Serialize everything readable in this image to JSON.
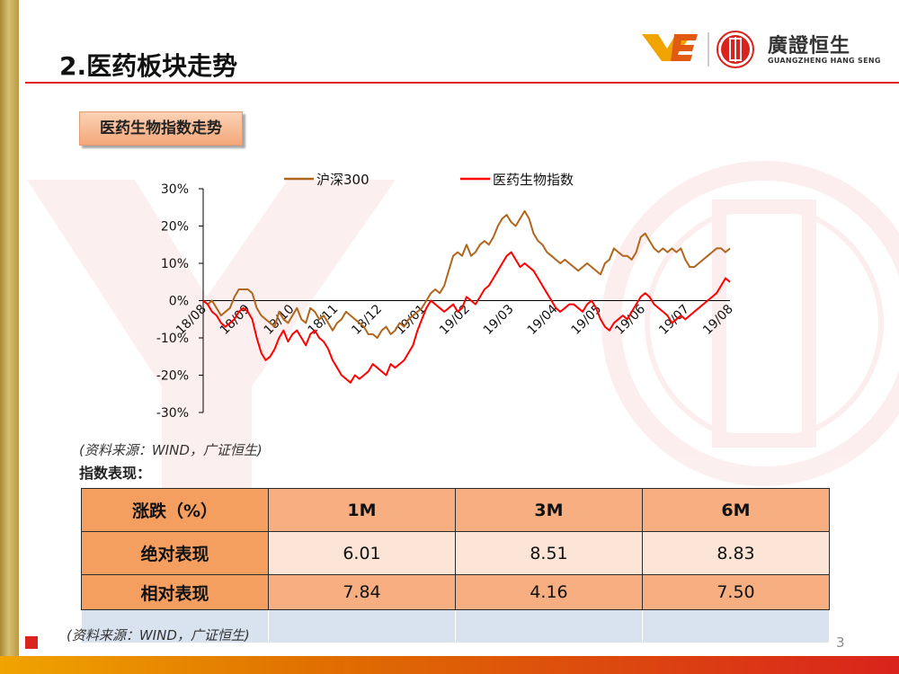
{
  "slide": {
    "title": "2.医药板块走势",
    "section_label": "医药生物指数走势",
    "page_number": "3"
  },
  "logo": {
    "name": "廣證恒生",
    "sub": "GUANGZHENG HANG SENG"
  },
  "colors": {
    "accent": "#d9231c",
    "hs300": "#b0661c",
    "pharma": "#ff0000",
    "table_head": "#f7ae80",
    "table_light": "#fce5d7",
    "table_first_col": "#f49e60"
  },
  "chart_data": {
    "type": "line",
    "title": "",
    "xlabel": "",
    "ylabel": "",
    "ylim": [
      -30,
      30
    ],
    "y_ticks": [
      "30%",
      "20%",
      "10%",
      "0%",
      "-10%",
      "-20%",
      "-30%"
    ],
    "x_ticks": [
      "18/08",
      "18/09",
      "18/10",
      "18/11",
      "18/12",
      "19/01",
      "19/02",
      "19/03",
      "19/04",
      "19/05",
      "19/06",
      "19/07",
      "19/08"
    ],
    "legend_position": "top",
    "grid": false,
    "series": [
      {
        "name": "沪深300",
        "color": "#b0661c",
        "values": [
          0,
          -1,
          0,
          -2,
          -4,
          -3,
          -2,
          1,
          3,
          3,
          3,
          2,
          -2,
          -4,
          -5,
          -6,
          -7,
          -3,
          -5,
          -6,
          -4,
          -2,
          -5,
          -6,
          -2,
          -3,
          -5,
          -4,
          -6,
          -8,
          -6,
          -5,
          -3,
          -4,
          -5,
          -6,
          -7,
          -9,
          -9,
          -10,
          -8,
          -7,
          -9,
          -8,
          -6,
          -7,
          -5,
          -4,
          -3,
          -2,
          0,
          2,
          3,
          2,
          4,
          8,
          12,
          13,
          12,
          15,
          12,
          13,
          15,
          16,
          15,
          17,
          20,
          22,
          23,
          21,
          20,
          22,
          24,
          22,
          18,
          16,
          15,
          13,
          12,
          11,
          10,
          11,
          10,
          9,
          8,
          9,
          10,
          9,
          8,
          7,
          10,
          11,
          14,
          13,
          12,
          12,
          11,
          13,
          17,
          18,
          16,
          14,
          13,
          14,
          13,
          14,
          13,
          14,
          11,
          9,
          9,
          10,
          11,
          12,
          13,
          14,
          14,
          13,
          14
        ]
      },
      {
        "name": "医药生物指数",
        "color": "#ff0000",
        "values": [
          0,
          -1,
          -3,
          -4,
          -6,
          -7,
          -6,
          -5,
          -3,
          -2,
          -3,
          -5,
          -10,
          -14,
          -16,
          -15,
          -13,
          -10,
          -8,
          -11,
          -9,
          -8,
          -10,
          -12,
          -9,
          -8,
          -10,
          -11,
          -13,
          -16,
          -18,
          -20,
          -21,
          -22,
          -20,
          -21,
          -20,
          -19,
          -17,
          -18,
          -19,
          -20,
          -17,
          -18,
          -17,
          -16,
          -14,
          -12,
          -8,
          -5,
          -2,
          0,
          -1,
          -2,
          -3,
          -2,
          -1,
          -3,
          -2,
          1,
          0,
          -1,
          1,
          3,
          4,
          6,
          8,
          10,
          12,
          13,
          11,
          9,
          10,
          9,
          8,
          6,
          4,
          2,
          0,
          -2,
          -3,
          -2,
          -1,
          -1,
          -2,
          -3,
          -1,
          0,
          -2,
          -5,
          -7,
          -8,
          -6,
          -5,
          -4,
          -5,
          -3,
          -1,
          1,
          2,
          1,
          -1,
          -2,
          -3,
          -4,
          -6,
          -5,
          -4,
          -5,
          -4,
          -3,
          -2,
          -1,
          0,
          1,
          2,
          4,
          6,
          5
        ]
      }
    ]
  },
  "chart_source": "(资料来源：WIND，广证恒生)",
  "table": {
    "caption": "指数表现：",
    "headers": [
      "涨跌（%）",
      "1M",
      "3M",
      "6M"
    ],
    "rows": [
      {
        "label": "绝对表现",
        "values": [
          "6.01",
          "8.51",
          "8.83"
        ]
      },
      {
        "label": "相对表现",
        "values": [
          "7.84",
          "4.16",
          "7.50"
        ]
      }
    ]
  },
  "table_source": "(资料来源：WIND，广证恒生)"
}
